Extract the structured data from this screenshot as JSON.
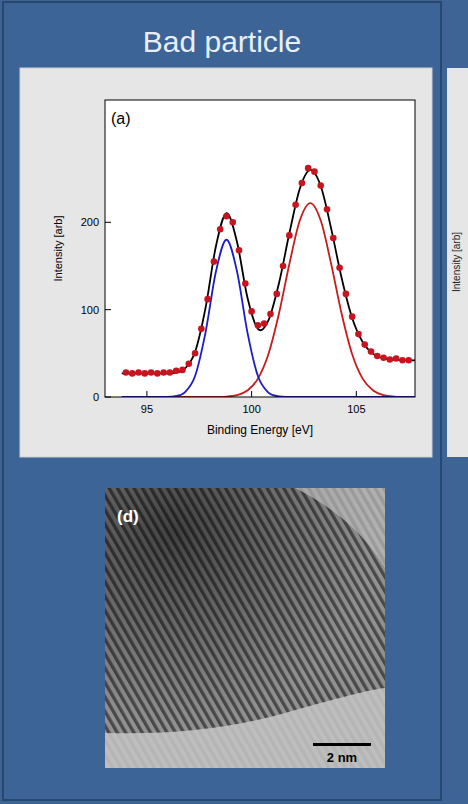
{
  "header": {
    "title": "Bad particle"
  },
  "chart_data": {
    "type": "line",
    "annotations": [
      "(a)"
    ],
    "x_label": "Binding Energy [eV]",
    "y_label": "Intensity [arb]",
    "xlim": [
      93,
      107.8
    ],
    "ylim": [
      0,
      340
    ],
    "xticks": [
      95,
      100,
      105
    ],
    "yticks": [
      0,
      100,
      200
    ],
    "grid": false,
    "series": [
      {
        "type": "scatter",
        "marker": "circle",
        "color": "#c8141e",
        "x": [
          94.0,
          94.3,
          94.6,
          94.9,
          95.2,
          95.5,
          95.8,
          96.1,
          96.4,
          96.7,
          97.0,
          97.3,
          97.6,
          97.9,
          98.2,
          98.5,
          98.8,
          99.1,
          99.4,
          99.7,
          100.0,
          100.3,
          100.6,
          100.9,
          101.2,
          101.5,
          101.8,
          102.1,
          102.4,
          102.7,
          103.0,
          103.3,
          103.6,
          103.9,
          104.2,
          104.5,
          104.8,
          105.1,
          105.4,
          105.7,
          106.0,
          106.3,
          106.6,
          106.9,
          107.2,
          107.5
        ],
        "values": [
          28,
          27,
          28,
          27,
          28,
          27,
          28,
          28,
          30,
          31,
          38,
          50,
          78,
          112,
          155,
          192,
          207,
          200,
          168,
          130,
          98,
          82,
          84,
          95,
          118,
          150,
          185,
          220,
          245,
          262,
          258,
          242,
          215,
          182,
          148,
          118,
          92,
          72,
          60,
          52,
          47,
          45,
          43,
          44,
          42,
          42
        ]
      },
      {
        "type": "line",
        "color": "#000000",
        "x": [
          93.8,
          94.3,
          94.8,
          95.3,
          95.8,
          96.3,
          96.8,
          97.3,
          97.8,
          98.3,
          98.8,
          99.3,
          99.8,
          100.3,
          100.8,
          101.3,
          101.8,
          102.3,
          102.8,
          103.3,
          103.8,
          104.3,
          104.8,
          105.3,
          105.8,
          106.3,
          106.8,
          107.3,
          107.8
        ],
        "values": [
          27,
          27,
          27,
          27,
          27.1,
          27.7,
          32.1,
          51.5,
          102,
          173.1,
          210.5,
          177.7,
          113.9,
          78,
          87.6,
          129.7,
          187.1,
          238.5,
          260,
          241.5,
          192.5,
          136,
          90.5,
          63,
          49.4,
          44.2,
          42.5,
          42.1,
          42
        ]
      },
      {
        "type": "line",
        "color": "#1c1cc8",
        "x": [
          93.8,
          94.3,
          94.8,
          95.3,
          95.8,
          96.3,
          96.8,
          97.3,
          97.8,
          98.3,
          98.8,
          99.3,
          99.8,
          100.3,
          100.8,
          101.3,
          101.8,
          102.3,
          102.8,
          103.3,
          103.8,
          104.3,
          104.8,
          105.3,
          105.8,
          106.3,
          106.8,
          107.3,
          107.8
        ],
        "values": [
          0,
          0,
          0,
          0,
          0.1,
          0.7,
          5.1,
          24,
          74,
          144,
          180,
          144,
          74,
          24,
          5.1,
          0.7,
          0.1,
          0,
          0,
          0,
          0,
          0,
          0,
          0,
          0,
          0,
          0,
          0,
          0
        ]
      },
      {
        "type": "line",
        "color": "#c81c1c",
        "x": [
          93.8,
          94.3,
          94.8,
          95.3,
          95.8,
          96.3,
          96.8,
          97.3,
          97.8,
          98.3,
          98.8,
          99.3,
          99.8,
          100.3,
          100.8,
          101.3,
          101.8,
          102.3,
          102.8,
          103.3,
          103.8,
          104.3,
          104.8,
          105.3,
          105.8,
          106.3,
          106.8,
          107.3,
          107.8
        ],
        "values": [
          0,
          0,
          0,
          0,
          0,
          0,
          0,
          0,
          0,
          0.1,
          0.5,
          2.2,
          7.4,
          21,
          49,
          95,
          152,
          202,
          222,
          202,
          152,
          95,
          49,
          21,
          7.4,
          2.2,
          0.5,
          0.1,
          0
        ]
      }
    ]
  },
  "image": {
    "label": "(d)",
    "scale_bar": "2 nm"
  },
  "neighbor": {
    "y_label": "Intensity [arb]"
  }
}
